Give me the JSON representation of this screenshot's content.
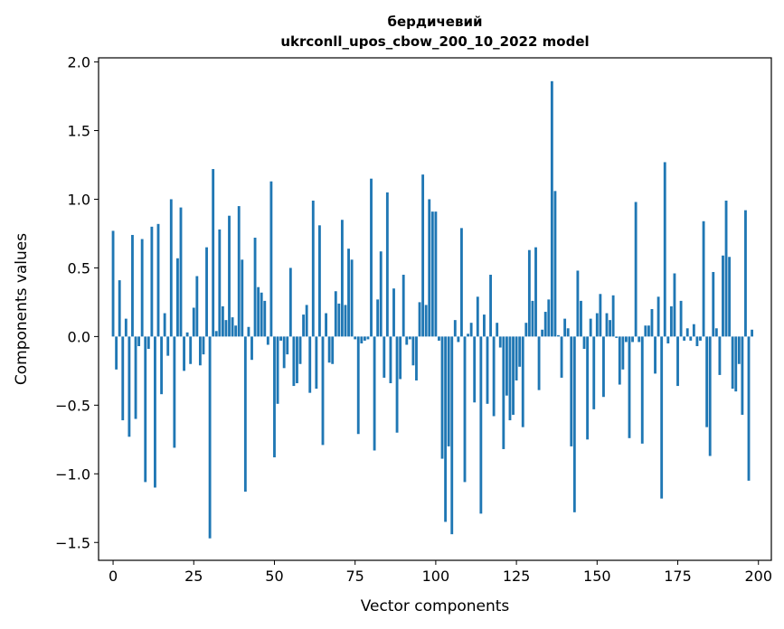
{
  "chart_data": {
    "type": "bar",
    "title": "бердичевий",
    "subtitle": "ukrconll_upos_cbow_200_10_2022 model",
    "xlabel": "Vector components",
    "ylabel": "Components values",
    "xlim": [
      -4.5,
      204
    ],
    "ylim": [
      -1.63,
      2.03
    ],
    "xticks": [
      0,
      25,
      50,
      75,
      100,
      125,
      150,
      175,
      200
    ],
    "yticks": [
      2.0,
      1.5,
      1.0,
      0.5,
      0.0,
      -0.5,
      -1.0,
      -1.5
    ],
    "ytick_labels": [
      "2.0",
      "1.5",
      "1.0",
      "0.5",
      "0.0",
      "−0.5",
      "−1.0",
      "−1.5"
    ],
    "bar_color": "#1f77b4",
    "grid": false,
    "values": [
      0.77,
      -0.24,
      0.41,
      -0.61,
      0.13,
      -0.73,
      0.74,
      -0.6,
      -0.07,
      0.71,
      -1.06,
      -0.09,
      0.8,
      -1.1,
      0.82,
      -0.42,
      0.17,
      -0.14,
      1.0,
      -0.81,
      0.57,
      0.94,
      -0.25,
      0.03,
      -0.2,
      0.21,
      0.44,
      -0.21,
      -0.13,
      0.65,
      -1.47,
      1.22,
      0.04,
      0.78,
      0.22,
      0.12,
      0.88,
      0.14,
      0.08,
      0.95,
      0.56,
      -1.13,
      0.07,
      -0.17,
      0.72,
      0.36,
      0.32,
      0.26,
      -0.06,
      1.13,
      -0.88,
      -0.49,
      -0.03,
      -0.23,
      -0.13,
      0.5,
      -0.36,
      -0.34,
      -0.2,
      0.16,
      0.23,
      -0.41,
      0.99,
      -0.38,
      0.81,
      -0.79,
      0.17,
      -0.19,
      -0.2,
      0.33,
      0.24,
      0.85,
      0.23,
      0.64,
      0.56,
      -0.02,
      -0.71,
      -0.05,
      -0.03,
      -0.02,
      1.15,
      -0.83,
      0.27,
      0.62,
      -0.3,
      1.05,
      -0.34,
      0.35,
      -0.7,
      -0.31,
      0.45,
      -0.06,
      -0.02,
      -0.21,
      -0.32,
      0.25,
      1.18,
      0.23,
      1.0,
      0.91,
      0.91,
      -0.03,
      -0.89,
      -1.35,
      -0.8,
      -1.44,
      0.12,
      -0.04,
      0.79,
      -1.06,
      0.02,
      0.1,
      -0.48,
      0.29,
      -1.29,
      0.16,
      -0.49,
      0.45,
      -0.58,
      0.1,
      -0.08,
      -0.82,
      -0.43,
      -0.61,
      -0.57,
      -0.32,
      -0.22,
      -0.66,
      0.1,
      0.63,
      0.26,
      0.65,
      -0.39,
      0.05,
      0.18,
      0.27,
      1.86,
      1.06,
      0.01,
      -0.3,
      0.13,
      0.06,
      -0.8,
      -1.28,
      0.48,
      0.26,
      -0.09,
      -0.75,
      0.13,
      -0.53,
      0.17,
      0.31,
      -0.44,
      0.17,
      0.12,
      0.3,
      -0.01,
      -0.35,
      -0.24,
      -0.04,
      -0.74,
      -0.04,
      0.98,
      -0.04,
      -0.78,
      0.08,
      0.08,
      0.2,
      -0.27,
      0.29,
      -1.18,
      1.27,
      -0.05,
      0.22,
      0.46,
      -0.36,
      0.26,
      -0.03,
      0.06,
      -0.03,
      0.09,
      -0.07,
      -0.03,
      0.84,
      -0.66,
      -0.87,
      0.47,
      0.06,
      -0.28,
      0.59,
      0.99,
      0.58,
      -0.38,
      -0.4,
      -0.2,
      -0.57,
      0.92,
      -1.05,
      0.05
    ]
  }
}
